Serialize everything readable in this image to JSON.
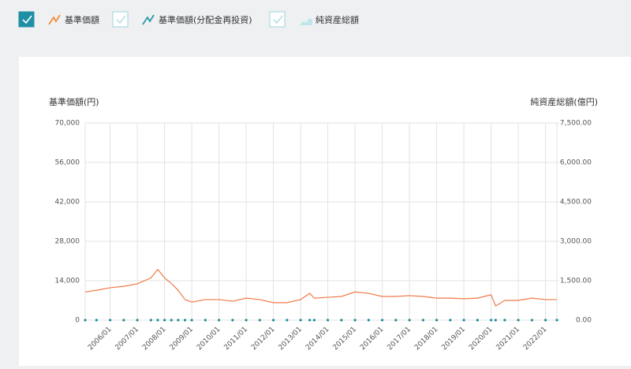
{
  "legend": [
    {
      "label": "基準価額",
      "checked": true,
      "color": "#f08c3c"
    },
    {
      "label": "基準価額(分配金再投資)",
      "checked": false,
      "color": "#2a9aa5"
    },
    {
      "label": "純資産総額",
      "checked": false,
      "color": "#bfe6ec"
    }
  ],
  "chart_data": {
    "type": "line",
    "ylabel": "基準価額(円)",
    "y2label": "純資産総額(億円)",
    "x": [
      "2005/02",
      "2005/07",
      "2006/01",
      "2006/07",
      "2007/01",
      "2007/07",
      "2007/10",
      "2008/01",
      "2008/04",
      "2008/07",
      "2008/10",
      "2009/01",
      "2009/07",
      "2010/01",
      "2010/07",
      "2011/01",
      "2011/07",
      "2012/01",
      "2012/07",
      "2013/01",
      "2013/05",
      "2013/07",
      "2014/01",
      "2014/07",
      "2015/01",
      "2015/07",
      "2016/01",
      "2016/07",
      "2017/01",
      "2017/07",
      "2018/01",
      "2018/07",
      "2019/01",
      "2019/07",
      "2020/01",
      "2020/03",
      "2020/07",
      "2021/01",
      "2021/07",
      "2022/01",
      "2022/06"
    ],
    "xlim": [
      "2005/02",
      "2022/06"
    ],
    "xticks": [
      "2006/01",
      "2007/01",
      "2008/01",
      "2009/01",
      "2010/01",
      "2011/01",
      "2012/01",
      "2013/01",
      "2014/01",
      "2015/01",
      "2016/01",
      "2017/01",
      "2018/01",
      "2019/01",
      "2020/01",
      "2021/01",
      "2022/01"
    ],
    "series": [
      {
        "name": "基準価額",
        "color": "#f07a4a",
        "values": [
          10000,
          10600,
          11500,
          12000,
          12900,
          15000,
          18000,
          15000,
          13000,
          10600,
          7300,
          6400,
          7300,
          7300,
          6700,
          7800,
          7300,
          6200,
          6200,
          7300,
          9500,
          7800,
          8100,
          8400,
          10000,
          9500,
          8400,
          8400,
          8700,
          8400,
          7800,
          7800,
          7600,
          7800,
          9000,
          5000,
          7000,
          7000,
          7800,
          7300,
          7300
        ]
      },
      {
        "name": "純資産総額",
        "color": "#1a8f96",
        "axis": "y2",
        "values": [
          0,
          0,
          0,
          0,
          0,
          0,
          0,
          0,
          0,
          0,
          0,
          0,
          0,
          0,
          0,
          0,
          0,
          0,
          0,
          0,
          0,
          0,
          0,
          0,
          0,
          0,
          0,
          0,
          0,
          0,
          0,
          0,
          0,
          0,
          0,
          0,
          0,
          0,
          0,
          0,
          0
        ]
      }
    ],
    "ylim": [
      0,
      70000
    ],
    "yticks": [
      0,
      {
        "value": 14000,
        "label": "14,000"
      },
      {
        "value": 28000,
        "label": "28,000"
      },
      {
        "value": 42000,
        "label": "42,000"
      },
      {
        "value": 56000,
        "label": "56,000"
      },
      {
        "value": 70000,
        "label": "70,000"
      }
    ],
    "y2lim": [
      0,
      7500
    ],
    "y2ticks": [
      {
        "value": 0,
        "label": "0.00"
      },
      {
        "value": 1500,
        "label": "1,500.00"
      },
      {
        "value": 3000,
        "label": "3,000.00"
      },
      {
        "value": 4500,
        "label": "4,500.00"
      },
      {
        "value": 6000,
        "label": "6,000.00"
      },
      {
        "value": 7500,
        "label": "7,500.00"
      }
    ],
    "grid": true
  }
}
